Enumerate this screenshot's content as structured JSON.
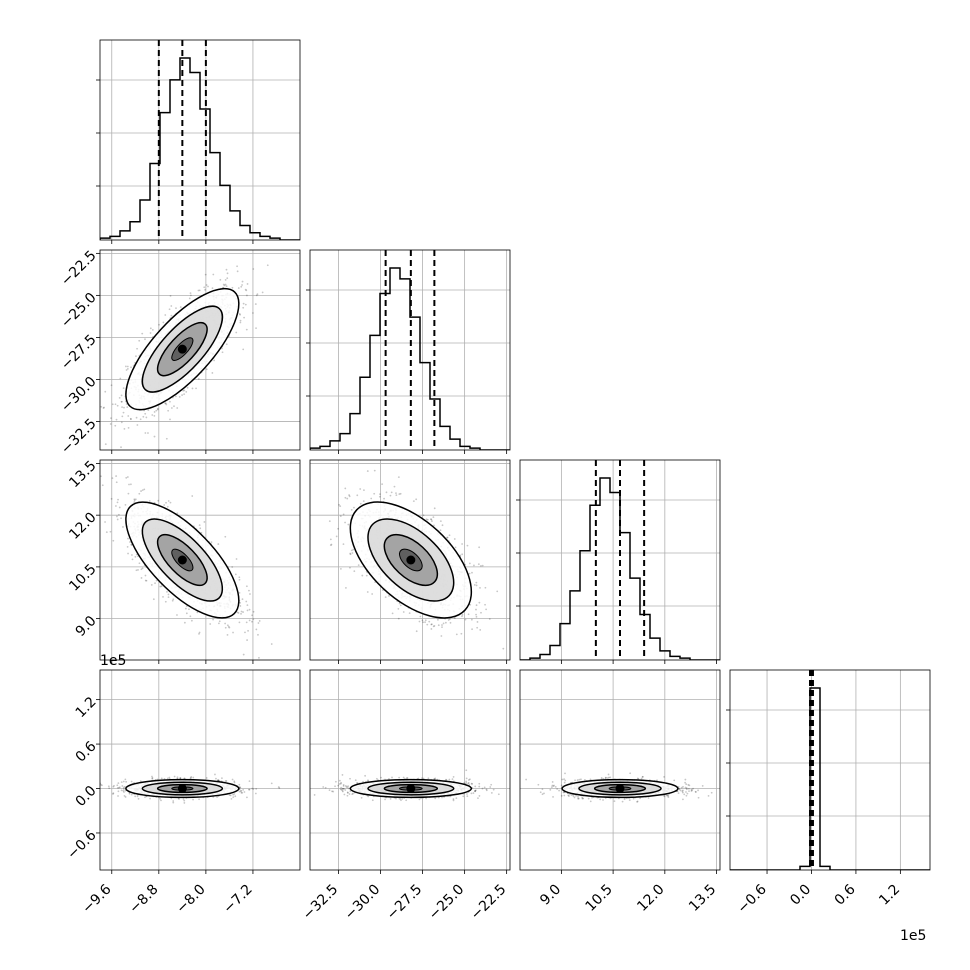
{
  "chart_data": {
    "type": "corner",
    "grid": true,
    "bins": 20,
    "quantile_linestyle": "dashed",
    "colors": {
      "line": "#000000",
      "grid": "#b0b0b0",
      "scatter": "#000000"
    },
    "params": [
      {
        "index": 0,
        "range": [
          -9.8,
          -6.4
        ],
        "ticks": [
          "−9.6",
          "−8.8",
          "−8.0",
          "−7.2"
        ],
        "tick_values": [
          -9.6,
          -8.8,
          -8.0,
          -7.2
        ],
        "offset": "",
        "mean": -8.4,
        "sd": 0.4,
        "quantiles": [
          -8.8,
          -8.4,
          -8.0
        ]
      },
      {
        "index": 1,
        "range": [
          -34.2,
          -22.3
        ],
        "ticks": [
          "−32.5",
          "−30.0",
          "−27.5",
          "−25.0",
          "−22.5"
        ],
        "tick_values": [
          -32.5,
          -30.0,
          -27.5,
          -25.0,
          -22.5
        ],
        "offset": "",
        "mean": -28.2,
        "sd": 1.5,
        "quantiles": [
          -29.7,
          -28.2,
          -26.8
        ]
      },
      {
        "index": 2,
        "range": [
          7.8,
          13.6
        ],
        "ticks": [
          "9.0",
          "10.5",
          "12.0",
          "13.5"
        ],
        "tick_values": [
          9.0,
          10.5,
          12.0,
          13.5
        ],
        "offset": "",
        "mean": 10.7,
        "sd": 0.7,
        "quantiles": [
          10.0,
          10.7,
          11.4
        ]
      },
      {
        "index": 3,
        "range": [
          -1.1,
          1.6
        ],
        "ticks": [
          "−0.6",
          "0.0",
          "0.6",
          "1.2"
        ],
        "tick_values": [
          -0.6,
          0.0,
          0.6,
          1.2
        ],
        "offset": "1e5",
        "mean": 0.0,
        "sd": 0.05,
        "quantiles": [
          -0.02,
          0.0,
          0.02
        ]
      }
    ],
    "correlations": [
      {
        "i": 1,
        "j": 0,
        "rho": 0.75
      },
      {
        "i": 2,
        "j": 0,
        "rho": -0.7
      },
      {
        "i": 2,
        "j": 1,
        "rho": -0.55
      },
      {
        "i": 3,
        "j": 0,
        "rho": 0.0
      },
      {
        "i": 3,
        "j": 1,
        "rho": 0.0
      },
      {
        "i": 3,
        "j": 2,
        "rho": 0.0
      }
    ],
    "hist_fractions": [
      [
        0.01,
        0.02,
        0.05,
        0.1,
        0.22,
        0.42,
        0.7,
        0.88,
        1.0,
        0.92,
        0.72,
        0.48,
        0.3,
        0.16,
        0.08,
        0.04,
        0.02,
        0.01,
        0.0,
        0.0
      ],
      [
        0.01,
        0.02,
        0.05,
        0.09,
        0.2,
        0.4,
        0.63,
        0.86,
        1.0,
        0.94,
        0.73,
        0.48,
        0.28,
        0.13,
        0.06,
        0.02,
        0.01,
        0.0,
        0.0,
        0.0
      ],
      [
        0.0,
        0.01,
        0.03,
        0.08,
        0.2,
        0.38,
        0.6,
        0.85,
        1.0,
        0.92,
        0.7,
        0.45,
        0.25,
        0.12,
        0.05,
        0.02,
        0.01,
        0.0,
        0.0,
        0.0
      ],
      [
        0.0,
        0.0,
        0.0,
        0.0,
        0.0,
        0.0,
        0.0,
        0.02,
        1.0,
        0.02,
        0.0,
        0.0,
        0.0,
        0.0,
        0.0,
        0.0,
        0.0,
        0.0,
        0.0,
        0.0
      ]
    ]
  }
}
